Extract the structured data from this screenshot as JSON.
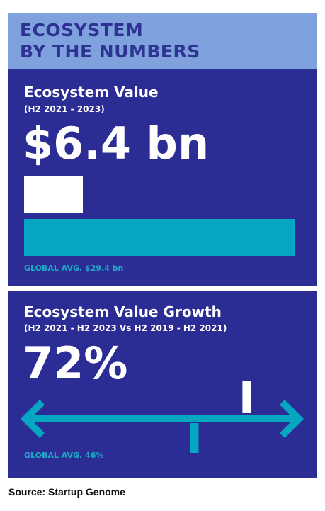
{
  "header": {
    "title_line1": "ECOSYSTEM",
    "title_line2": "BY THE NUMBERS"
  },
  "colors": {
    "header_bg": "#7fa1dd",
    "header_text": "#2d3293",
    "panel_bg": "#2c2d94",
    "local_mark": "#ffffff",
    "global_mark": "#04a6c2",
    "note_text": "#1fa9c9"
  },
  "chart_data": [
    {
      "type": "bar",
      "title": "Ecosystem Value",
      "subtitle": "(H2 2021 - 2023)",
      "headline": "$6.4 bn",
      "note": "GLOBAL AVG. $29.4 bn",
      "unit": "$ bn",
      "series": [
        {
          "name": "Ecosystem",
          "values": [
            6.4
          ]
        },
        {
          "name": "Global avg.",
          "values": [
            29.4
          ]
        }
      ],
      "xlim": [
        0,
        29.4
      ]
    },
    {
      "type": "scatter",
      "title": "Ecosystem Value Growth",
      "subtitle": "(H2 2021 - H2 2023 Vs H2 2019 - H2 2021)",
      "headline": "72%",
      "note": "GLOBAL AVG. 46%",
      "unit": "%",
      "points": [
        {
          "name": "Ecosystem",
          "x": 72
        },
        {
          "name": "Global avg.",
          "x": 46
        }
      ],
      "xlim": [
        -40,
        100
      ]
    }
  ],
  "source": "Source: Startup Genome"
}
